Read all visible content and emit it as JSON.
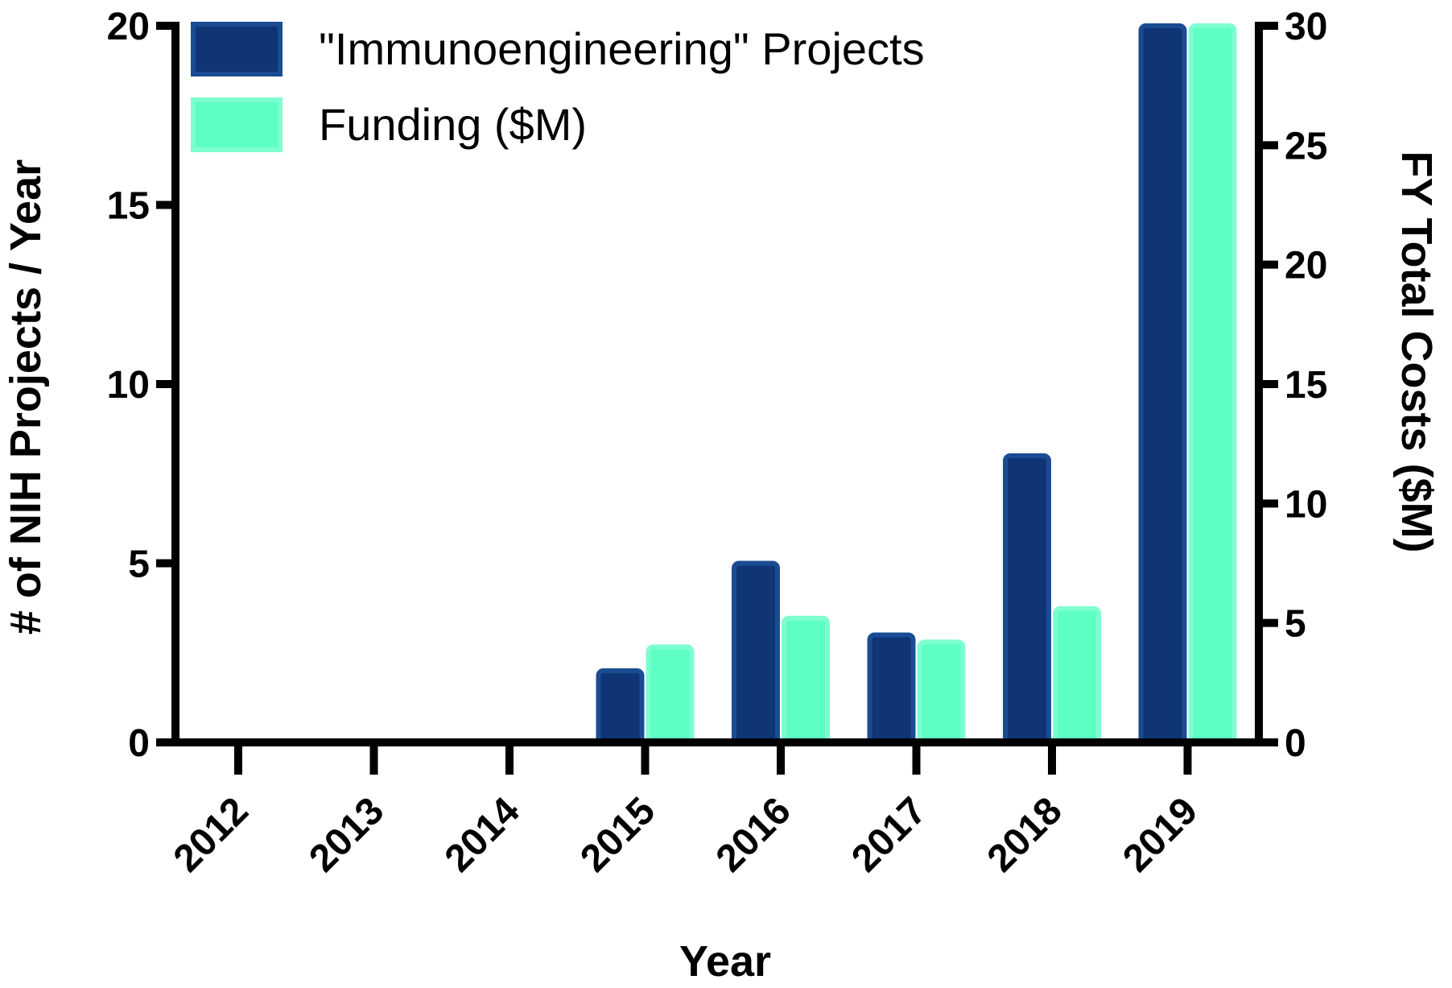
{
  "chart_data": {
    "type": "bar",
    "categories": [
      "2012",
      "2013",
      "2014",
      "2015",
      "2016",
      "2017",
      "2018",
      "2019"
    ],
    "series": [
      {
        "name": "\"Immunoengineering\" Projects",
        "axis": "left",
        "color": "#0f3575",
        "edge_color": "#1a4c93",
        "values": [
          0,
          0,
          0,
          2,
          5,
          3,
          8,
          20
        ]
      },
      {
        "name": "Funding ($M)",
        "axis": "right",
        "color": "#5effc3",
        "edge_color": "#7dffd0",
        "values": [
          0,
          0,
          0,
          4,
          5.2,
          4.2,
          5.6,
          30
        ]
      }
    ],
    "xlabel": "Year",
    "ylabel_left": "# of NIH Projects / Year",
    "ylabel_right": "FY Total Costs ($M)",
    "ylim_left": [
      0,
      20
    ],
    "ylim_right": [
      0,
      30
    ],
    "yticks_left": [
      0,
      5,
      10,
      15,
      20
    ],
    "yticks_right": [
      0,
      5,
      10,
      15,
      20,
      25,
      30
    ],
    "grid": false,
    "legend_position": "top-left"
  }
}
